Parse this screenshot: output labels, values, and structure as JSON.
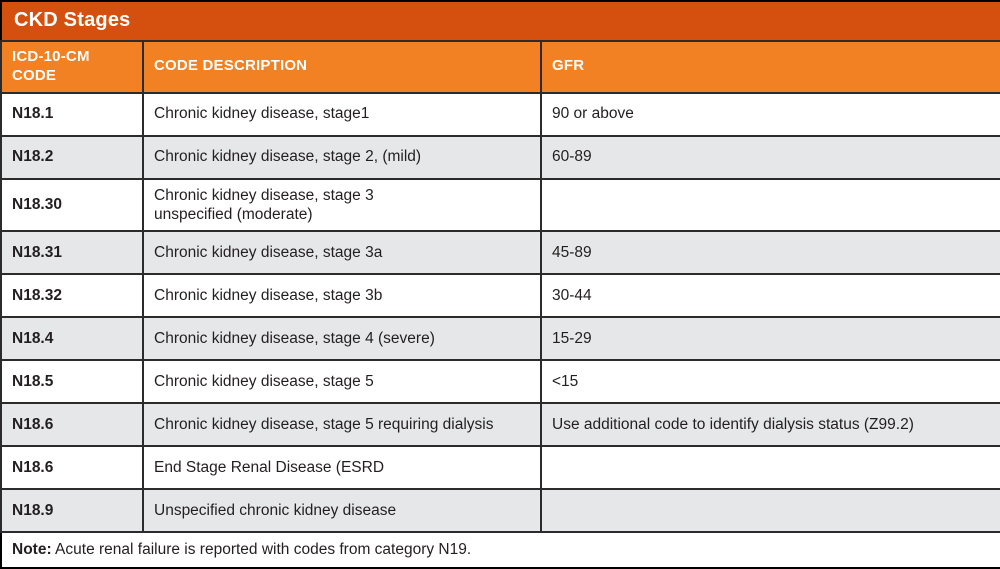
{
  "table": {
    "title": "CKD Stages",
    "columns": [
      {
        "label": "ICD-10-CM\nCODE"
      },
      {
        "label": "CODE DESCRIPTION"
      },
      {
        "label": "GFR"
      }
    ],
    "rows": [
      {
        "code": "N18.1",
        "description": "Chronic kidney disease, stage1",
        "gfr": "90 or above"
      },
      {
        "code": "N18.2",
        "description": "Chronic kidney disease, stage 2, (mild)",
        "gfr": "60-89"
      },
      {
        "code": "N18.30",
        "description": "Chronic kidney disease, stage 3\nunspecified (moderate)",
        "gfr": ""
      },
      {
        "code": "N18.31",
        "description": "Chronic kidney disease, stage 3a",
        "gfr": "45-89"
      },
      {
        "code": "N18.32",
        "description": "Chronic kidney disease, stage 3b",
        "gfr": "30-44"
      },
      {
        "code": "N18.4",
        "description": "Chronic kidney disease, stage 4 (severe)",
        "gfr": "15-29"
      },
      {
        "code": "N18.5",
        "description": "Chronic kidney disease, stage 5",
        "gfr": "<15"
      },
      {
        "code": "N18.6",
        "description": "Chronic kidney disease, stage 5 requiring dialysis",
        "gfr": "Use additional code to identify dialysis status (Z99.2)"
      },
      {
        "code": "N18.6",
        "description": "End Stage Renal Disease (ESRD",
        "gfr": ""
      },
      {
        "code": "N18.9",
        "description": "Unspecified chronic kidney disease",
        "gfr": ""
      }
    ],
    "note_label": "Note:",
    "note_text": " Acute renal failure is reported with codes from category N19."
  },
  "colors": {
    "title_bg": "#d5500e",
    "header_bg": "#f18122",
    "row_alt_bg": "#e6e7e8",
    "border": "#2b2b2b",
    "outer_border": "#000000",
    "text": "#231f20",
    "header_text": "#ffffff"
  }
}
